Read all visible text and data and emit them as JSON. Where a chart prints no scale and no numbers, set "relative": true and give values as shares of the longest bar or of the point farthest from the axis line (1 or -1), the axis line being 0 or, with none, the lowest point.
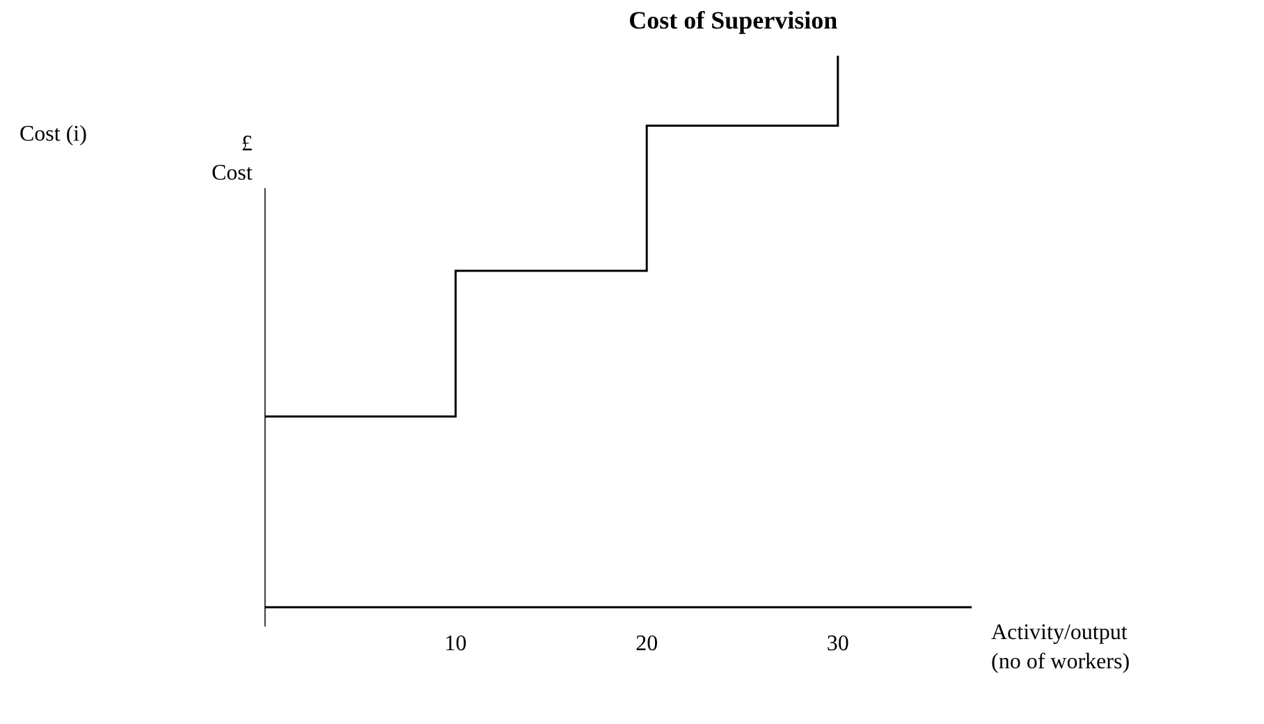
{
  "chart_data": {
    "type": "step",
    "title": "Cost of Supervision",
    "xlabel": "Activity/output\n(no of workers)",
    "ylabel": "£\nCost",
    "annotations": [
      "Cost (i)"
    ],
    "x": [
      0,
      10,
      20,
      30
    ],
    "values": [
      0.346,
      0.61,
      0.873,
      1
    ],
    "color": "#000000",
    "relative": true,
    "xlim": [
      0,
      37
    ],
    "xticks": [
      10,
      20,
      30
    ],
    "legend": false,
    "marker": "none",
    "line_style": "solid"
  }
}
